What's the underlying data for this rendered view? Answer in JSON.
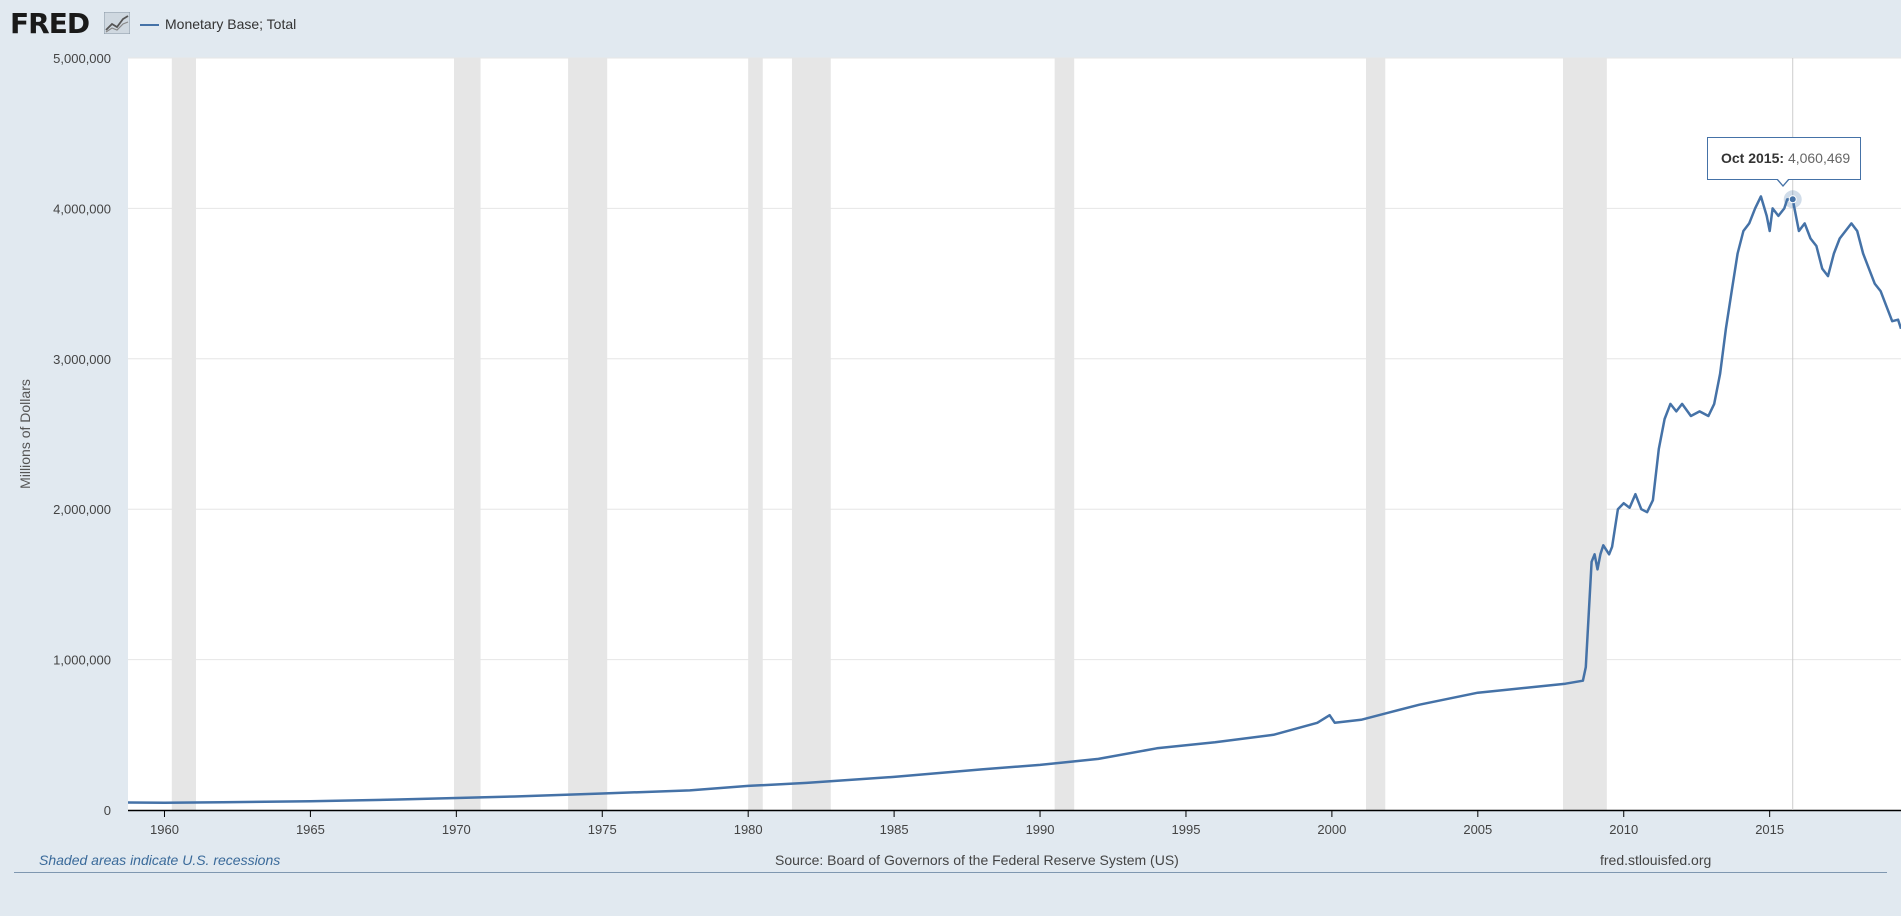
{
  "header": {
    "logo_text": "FRED",
    "logo_icon": "chart-line-icon",
    "legend_label": "Monetary Base; Total",
    "legend_color": "#4572a7"
  },
  "footer": {
    "recession_note": "Shaded areas indicate U.S. recessions",
    "source": "Source: Board of Governors of the Federal Reserve System (US)",
    "site": "fred.stlouisfed.org"
  },
  "tooltip": {
    "label": "Oct 2015:",
    "value": "4,060,469",
    "x": 2015.79,
    "y": 4060469
  },
  "colors": {
    "background": "#e1e9f0",
    "plot_background": "#ffffff",
    "series": "#4572a7",
    "recession_shading": "#e6e6e6",
    "gridline": "#e6e6e6"
  },
  "chart_data": {
    "type": "line",
    "title": "",
    "xlabel": "",
    "ylabel": "Millions of Dollars",
    "xlim": [
      1958.75,
      2019.5
    ],
    "ylim": [
      0,
      5000000
    ],
    "x_ticks": [
      1960,
      1965,
      1970,
      1975,
      1980,
      1985,
      1990,
      1995,
      2000,
      2005,
      2010,
      2015
    ],
    "y_ticks": [
      0,
      1000000,
      2000000,
      3000000,
      4000000,
      5000000
    ],
    "y_tick_labels": [
      "0",
      "1,000,000",
      "2,000,000",
      "3,000,000",
      "4,000,000",
      "5,000,000"
    ],
    "grid": "horizontal",
    "legend": "top-left",
    "recessions": [
      [
        1960.25,
        1961.08
      ],
      [
        1969.92,
        1970.83
      ],
      [
        1973.83,
        1975.17
      ],
      [
        1980.0,
        1980.5
      ],
      [
        1981.5,
        1982.83
      ],
      [
        1990.5,
        1991.17
      ],
      [
        2001.17,
        2001.83
      ],
      [
        2007.92,
        2009.42
      ]
    ],
    "series": [
      {
        "name": "Monetary Base; Total",
        "x": [
          1958.75,
          1960,
          1962,
          1965,
          1968,
          1970,
          1972,
          1975,
          1978,
          1980,
          1982,
          1985,
          1988,
          1990,
          1992,
          1994,
          1996,
          1998,
          1999.5,
          1999.92,
          2000.1,
          2001,
          2002,
          2003,
          2004,
          2005,
          2006,
          2007,
          2008,
          2008.6,
          2008.7,
          2008.8,
          2008.9,
          2009.0,
          2009.1,
          2009.2,
          2009.3,
          2009.5,
          2009.6,
          2009.8,
          2010.0,
          2010.2,
          2010.4,
          2010.6,
          2010.8,
          2011.0,
          2011.2,
          2011.4,
          2011.6,
          2011.8,
          2012.0,
          2012.3,
          2012.6,
          2012.9,
          2013.1,
          2013.3,
          2013.5,
          2013.7,
          2013.9,
          2014.1,
          2014.3,
          2014.5,
          2014.7,
          2014.9,
          2015.0,
          2015.1,
          2015.3,
          2015.5,
          2015.6,
          2015.79,
          2016.0,
          2016.2,
          2016.4,
          2016.6,
          2016.8,
          2017.0,
          2017.2,
          2017.4,
          2017.6,
          2017.8,
          2018.0,
          2018.2,
          2018.4,
          2018.6,
          2018.8,
          2019.0,
          2019.2,
          2019.4,
          2019.5
        ],
        "values": [
          50000,
          48000,
          52000,
          58000,
          70000,
          80000,
          90000,
          110000,
          130000,
          160000,
          180000,
          220000,
          270000,
          300000,
          340000,
          410000,
          450000,
          500000,
          580000,
          630000,
          580000,
          600000,
          650000,
          700000,
          740000,
          780000,
          800000,
          820000,
          840000,
          860000,
          950000,
          1300000,
          1650000,
          1700000,
          1600000,
          1700000,
          1760000,
          1700000,
          1750000,
          2000000,
          2040000,
          2010000,
          2100000,
          2000000,
          1980000,
          2060000,
          2400000,
          2600000,
          2700000,
          2650000,
          2700000,
          2620000,
          2650000,
          2620000,
          2700000,
          2900000,
          3200000,
          3450000,
          3700000,
          3850000,
          3900000,
          4000000,
          4080000,
          3950000,
          3850000,
          4000000,
          3950000,
          4000000,
          4060000,
          4060469,
          3850000,
          3900000,
          3800000,
          3750000,
          3600000,
          3550000,
          3700000,
          3800000,
          3850000,
          3900000,
          3850000,
          3700000,
          3600000,
          3500000,
          3450000,
          3350000,
          3250000,
          3260000,
          3200000
        ]
      }
    ]
  }
}
